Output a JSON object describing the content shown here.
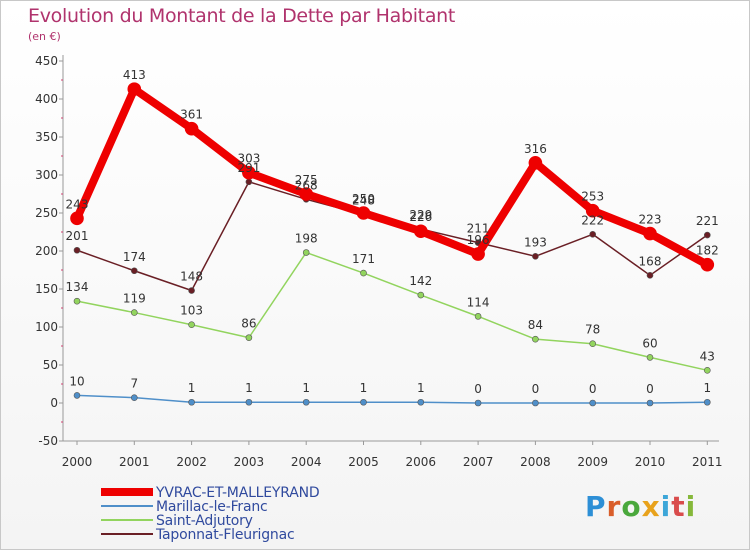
{
  "chart_data": {
    "type": "line",
    "title": "Evolution du Montant de la Dette par Habitant",
    "subtitle": "(en €)",
    "categories": [
      "2000",
      "2001",
      "2002",
      "2003",
      "2004",
      "2005",
      "2006",
      "2007",
      "2008",
      "2009",
      "2010",
      "2011"
    ],
    "ylim": [
      -50,
      450
    ],
    "yticks": [
      -50,
      0,
      50,
      100,
      150,
      200,
      250,
      300,
      350,
      400,
      450
    ],
    "grid": false,
    "legend_position": "bottom-left",
    "series": [
      {
        "name": "YVRAC-ET-MALLEYRAND",
        "color": "#ee0000",
        "values": [
          243,
          413,
          361,
          303,
          275,
          250,
          226,
          196,
          316,
          253,
          223,
          182
        ]
      },
      {
        "name": "Marillac-le-Franc",
        "color": "#4f8fc9",
        "values": [
          10,
          7,
          1,
          1,
          1,
          1,
          1,
          0,
          0,
          0,
          0,
          1
        ]
      },
      {
        "name": "Saint-Adjutory",
        "color": "#92d45e",
        "values": [
          134,
          119,
          103,
          86,
          198,
          171,
          142,
          114,
          84,
          78,
          60,
          43
        ]
      },
      {
        "name": "Taponnat-Fleurignac",
        "color": "#6a1f25",
        "values": [
          201,
          174,
          148,
          291,
          268,
          248,
          229,
          211,
          193,
          222,
          168,
          221
        ]
      }
    ]
  },
  "logo": {
    "letters": [
      "P",
      "r",
      "o",
      "x",
      "i",
      "t",
      "i"
    ]
  }
}
